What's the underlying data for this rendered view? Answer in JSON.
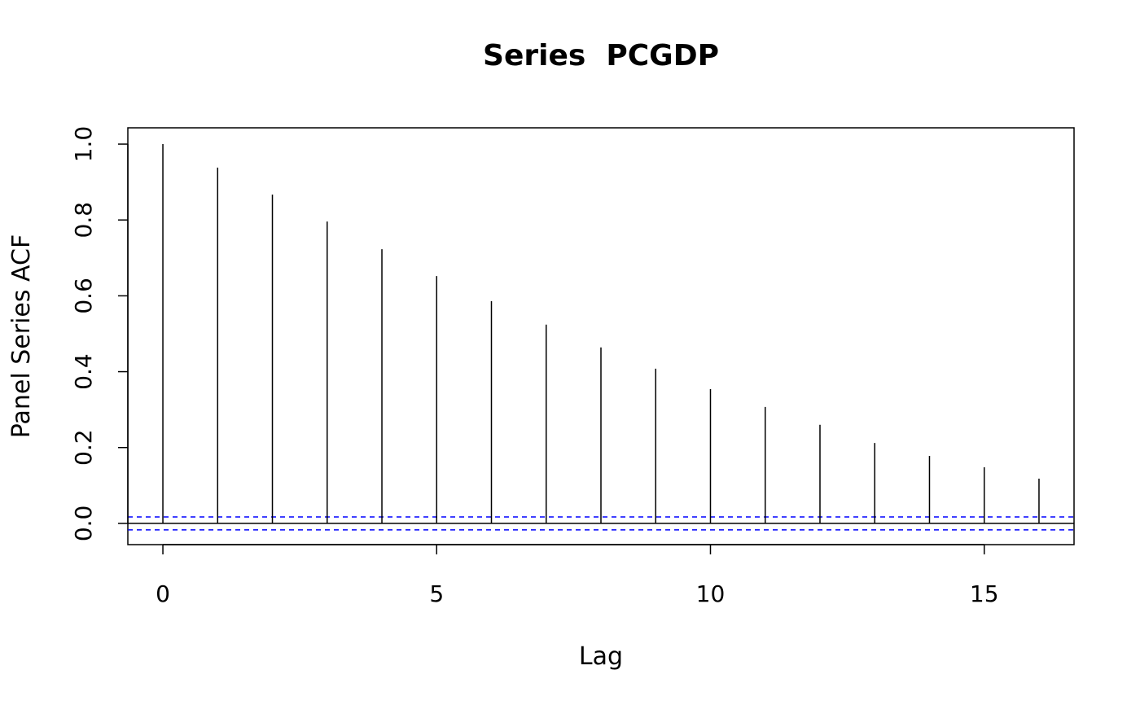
{
  "chart_data": {
    "type": "bar",
    "title": "Series  PCGDP",
    "xlabel": "Lag",
    "ylabel": "Panel Series ACF",
    "x": [
      0,
      1,
      2,
      3,
      4,
      5,
      6,
      7,
      8,
      9,
      10,
      11,
      12,
      13,
      14,
      15,
      16
    ],
    "values": [
      1.0,
      0.938,
      0.867,
      0.796,
      0.723,
      0.652,
      0.586,
      0.524,
      0.464,
      0.408,
      0.354,
      0.307,
      0.26,
      0.212,
      0.178,
      0.148,
      0.118
    ],
    "confidence_bounds": [
      0.017,
      -0.017
    ],
    "confidence_color": "#0000ff",
    "xlim": [
      -0.64,
      16.64
    ],
    "ylim": [
      -0.056,
      1.043
    ],
    "xticks": [
      "0",
      "5",
      "10",
      "15"
    ],
    "yticks": [
      "0.0",
      "0.2",
      "0.4",
      "0.6",
      "0.8",
      "1.0"
    ],
    "grid": false,
    "legend": "none"
  }
}
